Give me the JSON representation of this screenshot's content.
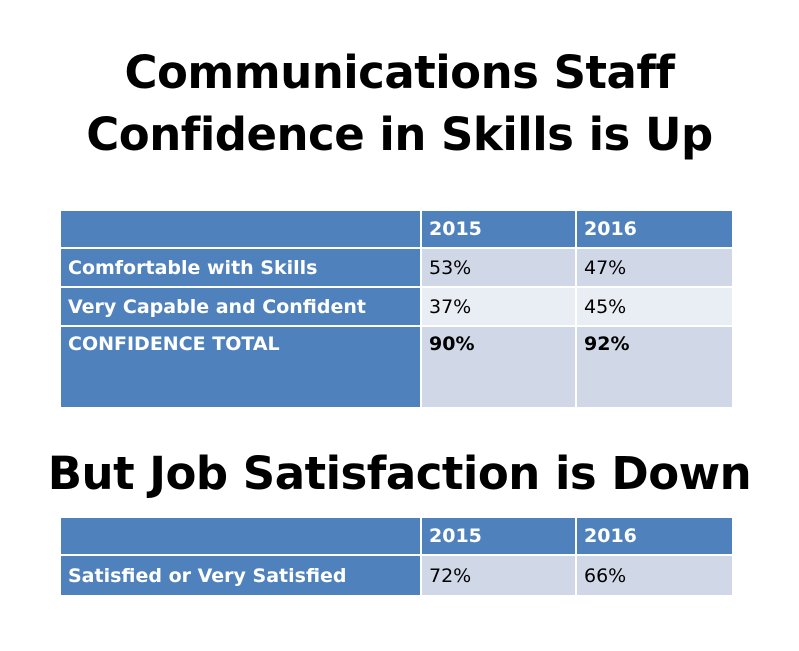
{
  "title_main_line1": "Communications Staff",
  "title_main_line2": "Confidence in Skills is Up",
  "title_second": "But Job Satisfaction is Down",
  "table_confidence": {
    "headers": [
      "",
      "2015",
      "2016"
    ],
    "rows": [
      {
        "label": "Comfortable with Skills",
        "v2015": "53%",
        "v2016": "47%"
      },
      {
        "label": "Very Capable and Confident",
        "v2015": "37%",
        "v2016": "45%"
      },
      {
        "label": "CONFIDENCE TOTAL",
        "v2015": "90%",
        "v2016": "92%"
      }
    ]
  },
  "table_satisfaction": {
    "headers": [
      "",
      "2015",
      "2016"
    ],
    "rows": [
      {
        "label": "Satisfied or Very Satisfied",
        "v2015": "72%",
        "v2016": "66%"
      }
    ]
  },
  "colors": {
    "header_blue": "#4f81bd",
    "cell_light": "#d0d8e8",
    "cell_lighter": "#e9edf4"
  }
}
